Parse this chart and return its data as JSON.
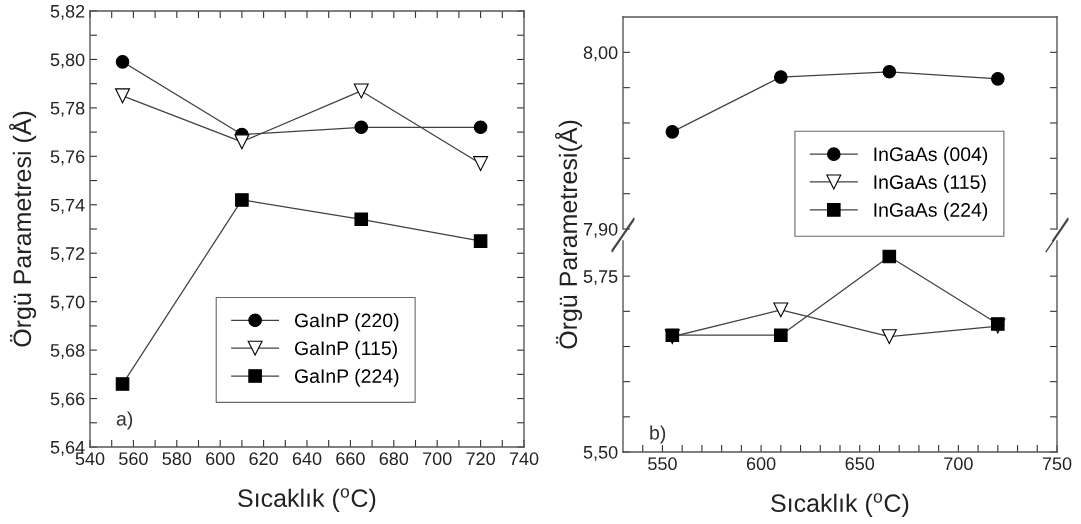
{
  "chart_data": [
    {
      "type": "line",
      "xlabel": "Sıcaklık ($^{o}$C)",
      "ylabel": "Örgü Parametresi (Å)",
      "x": [
        555,
        610,
        665,
        720
      ],
      "series": [
        {
          "name": "GaInP (220)",
          "color": "#000000",
          "marker": "circle",
          "values": [
            5.799,
            5.769,
            5.772,
            5.772
          ]
        },
        {
          "name": "GaInP (115)",
          "color": "#000000",
          "marker": "triangle",
          "values": [
            5.785,
            5.766,
            5.787,
            5.757
          ]
        },
        {
          "name": "GaInP (224)",
          "color": "#000000",
          "marker": "square",
          "values": [
            5.666,
            5.742,
            5.734,
            5.725
          ]
        }
      ],
      "xlim": [
        540,
        740
      ],
      "xticks": [
        540,
        {
          "value": 550,
          "label": null
        },
        560,
        {
          "value": 570,
          "label": null
        },
        580,
        {
          "value": 590,
          "label": null
        },
        600,
        {
          "value": 610,
          "label": null
        },
        620,
        {
          "value": 630,
          "label": null
        },
        640,
        {
          "value": 650,
          "label": null
        },
        660,
        {
          "value": 670,
          "label": null
        },
        680,
        {
          "value": 690,
          "label": null
        },
        700,
        {
          "value": 710,
          "label": null
        },
        720,
        {
          "value": 730,
          "label": null
        },
        740
      ],
      "ylim": [
        5.64,
        5.82
      ],
      "yticks": [
        {
          "value": 5.64,
          "label": "5,64"
        },
        {
          "value": 5.65,
          "label": null
        },
        {
          "value": 5.66,
          "label": "5,66"
        },
        {
          "value": 5.67,
          "label": null
        },
        {
          "value": 5.68,
          "label": "5,68"
        },
        {
          "value": 5.69,
          "label": null
        },
        {
          "value": 5.7,
          "label": "5,70"
        },
        {
          "value": 5.71,
          "label": null
        },
        {
          "value": 5.72,
          "label": "5,72"
        },
        {
          "value": 5.73,
          "label": null
        },
        {
          "value": 5.74,
          "label": "5,74"
        },
        {
          "value": 5.75,
          "label": null
        },
        {
          "value": 5.76,
          "label": "5,76"
        },
        {
          "value": 5.77,
          "label": null
        },
        {
          "value": 5.78,
          "label": "5,78"
        },
        {
          "value": 5.79,
          "label": null
        },
        {
          "value": 5.8,
          "label": "5,80"
        },
        {
          "value": 5.81,
          "label": null
        },
        {
          "value": 5.82,
          "label": "5,82"
        }
      ],
      "legend": "bottom",
      "grid": false,
      "annotations": [
        "a)"
      ]
    },
    {
      "type": "line",
      "x": [
        555,
        610,
        665,
        720
      ],
      "series": [
        {
          "name": "InGaAs (004)",
          "color": "#000000",
          "marker": "circle",
          "values": [
            7.955,
            7.986,
            7.989,
            7.985
          ]
        }
      ],
      "xlim": [
        530,
        750
      ],
      "ylim": [
        7.9,
        8.02
      ],
      "yticks": [
        {
          "value": 7.9,
          "label": "7,90"
        },
        {
          "value": 7.92,
          "label": null
        },
        {
          "value": 7.94,
          "label": null
        },
        {
          "value": 7.96,
          "label": null
        },
        {
          "value": 7.98,
          "label": null
        },
        {
          "value": 8.0,
          "label": "8,00"
        }
      ],
      "tick_labels": "y",
      "legend": "right",
      "grid": false
    },
    {
      "type": "line",
      "xlabel": "Sıcaklık ($^{o}$C)",
      "ylabel": "Örgü Parametresi(Å)",
      "x": [
        555,
        610,
        665,
        720
      ],
      "series": [
        {
          "name": "InGaAs (115)",
          "color": "#000000",
          "marker": "triangle",
          "values": [
            5.664,
            5.702,
            5.664,
            5.679
          ]
        },
        {
          "name": "InGaAs (224)",
          "color": "#000000",
          "marker": "square",
          "values": [
            5.666,
            5.666,
            5.778,
            5.682
          ]
        }
      ],
      "xlim": [
        530,
        750
      ],
      "xticks": [
        {
          "value": 540,
          "label": null
        },
        550,
        {
          "value": 560,
          "label": null
        },
        {
          "value": 570,
          "label": null
        },
        {
          "value": 580,
          "label": null
        },
        {
          "value": 590,
          "label": null
        },
        600,
        {
          "value": 610,
          "label": null
        },
        {
          "value": 620,
          "label": null
        },
        {
          "value": 630,
          "label": null
        },
        {
          "value": 640,
          "label": null
        },
        650,
        {
          "value": 660,
          "label": null
        },
        {
          "value": 670,
          "label": null
        },
        {
          "value": 680,
          "label": null
        },
        {
          "value": 690,
          "label": null
        },
        700,
        {
          "value": 710,
          "label": null
        },
        {
          "value": 720,
          "label": null
        },
        {
          "value": 730,
          "label": null
        },
        {
          "value": 740,
          "label": null
        },
        750
      ],
      "ylim": [
        5.5,
        5.8
      ],
      "yticks": [
        {
          "value": 5.5,
          "label": "5,50"
        },
        {
          "value": 5.55,
          "label": null
        },
        {
          "value": 5.6,
          "label": null
        },
        {
          "value": 5.65,
          "label": null
        },
        {
          "value": 5.7,
          "label": null
        },
        {
          "value": 5.75,
          "label": "5,75"
        }
      ],
      "legend": "right",
      "grid": false,
      "annotations": [
        "b)"
      ]
    }
  ]
}
